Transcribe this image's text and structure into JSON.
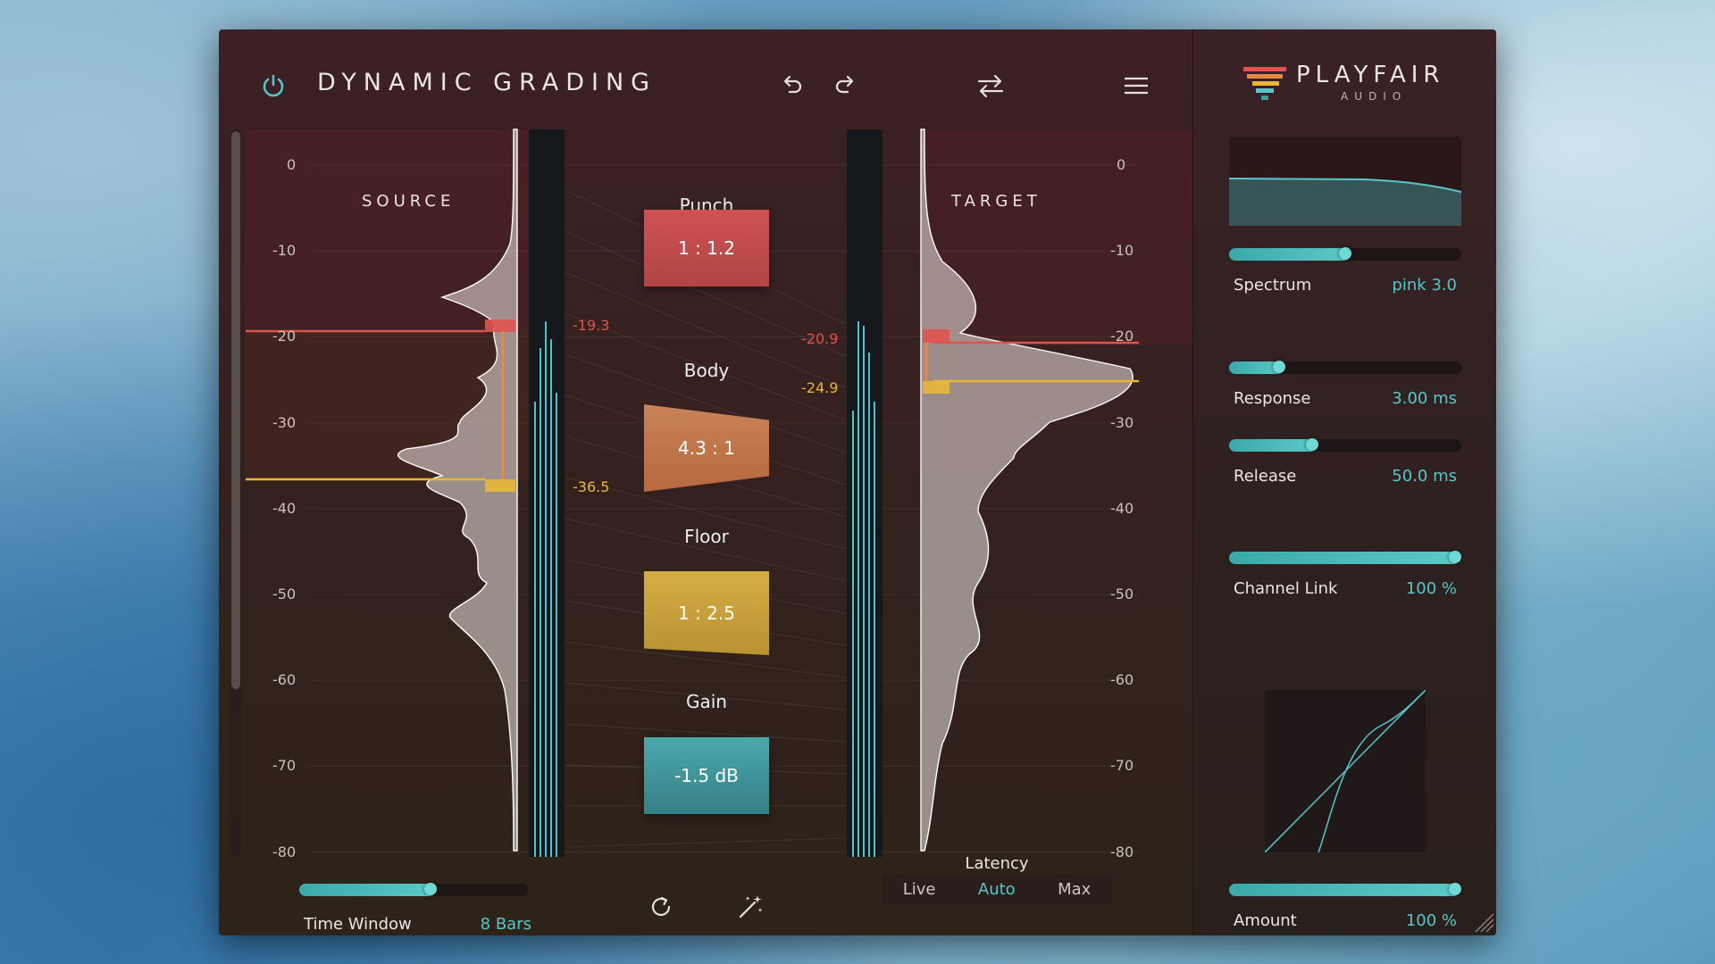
{
  "app": {
    "title": "DYNAMIC GRADING",
    "brand_name": "PLAYFAIR",
    "brand_sub": "AUDIO"
  },
  "toolbar": {
    "icons": [
      "power-icon",
      "undo-icon",
      "redo-icon",
      "swap-icon",
      "menu-icon"
    ]
  },
  "scale": {
    "left_ticks": [
      "0",
      "-10",
      "-20",
      "-30",
      "-40",
      "-50",
      "-60",
      "-70",
      "-80"
    ],
    "right_ticks": [
      "0",
      "-10",
      "-20",
      "-30",
      "-40",
      "-50",
      "-60",
      "-70",
      "-80"
    ]
  },
  "source": {
    "label": "SOURCE",
    "upper_threshold": "-19.3",
    "lower_threshold": "-36.5"
  },
  "target": {
    "label": "TARGET",
    "upper_threshold": "-20.9",
    "lower_threshold": "-24.9"
  },
  "bands": {
    "punch": {
      "label": "Punch",
      "value": "1 : 1.2"
    },
    "body": {
      "label": "Body",
      "value": "4.3 : 1"
    },
    "floor": {
      "label": "Floor",
      "value": "1 : 2.5"
    },
    "gain": {
      "label": "Gain",
      "value": "-1.5 dB"
    }
  },
  "bottom": {
    "time_window_label": "Time Window",
    "time_window_value": "8 Bars",
    "time_window_level": 0.58,
    "latency_label": "Latency",
    "latency_options": [
      "Live",
      "Auto",
      "Max"
    ],
    "latency_selected": "Auto"
  },
  "params": {
    "spectrum": {
      "label": "Spectrum",
      "value": "pink 3.0",
      "level": 0.5
    },
    "response": {
      "label": "Response",
      "value": "3.00 ms",
      "level": 0.2
    },
    "release": {
      "label": "Release",
      "value": "50.0 ms",
      "level": 0.35
    },
    "channel_link": {
      "label": "Channel Link",
      "value": "100 %",
      "level": 1.0
    },
    "amount": {
      "label": "Amount",
      "value": "100 %",
      "level": 1.0
    }
  },
  "colors": {
    "accent": "#56c6cb",
    "punch": "#c24a4a",
    "body": "#c6764a",
    "floor": "#cfa53c",
    "gain": "#3f9aa0",
    "threshold_red": "#e0534e",
    "threshold_yellow": "#e8b73a"
  }
}
